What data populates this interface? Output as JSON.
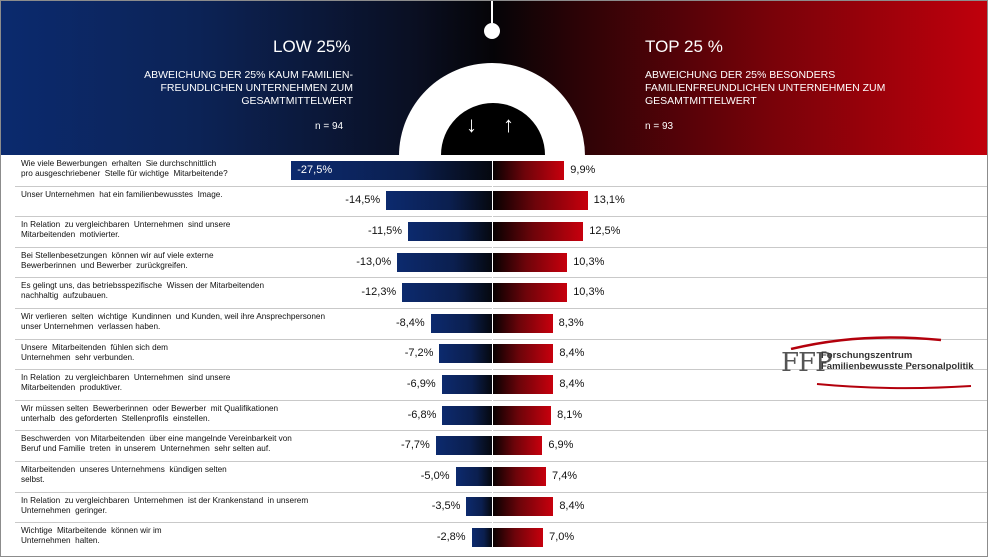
{
  "header": {
    "low_title": "LOW 25%",
    "low_subtitle": "ABWEICHUNG DER 25% KAUM FAMILIEN-\nFREUNDLICHEN UNTERNEHMEN ZUM\nGESAMTMITTELWERT",
    "low_n": "n = 94",
    "top_title": "TOP 25 %",
    "top_subtitle": "ABWEICHUNG DER 25% BESONDERS\nFAMILIENFREUNDLICHEN UNTERNEHMEN ZUM\nGESAMTMITTELWERT",
    "top_n": "n = 93",
    "arrow_down": "↓",
    "arrow_up": "↑"
  },
  "logo": {
    "mark": "FFP",
    "line1": "Forschungszentrum",
    "line2": "Familienbewusste Personalpolitik"
  },
  "colors": {
    "low": "#0c2a6e",
    "top": "#c7000d"
  },
  "chart_data": {
    "type": "bar",
    "orientation": "horizontal-diverging",
    "categories": [
      "Wie viele Bewerbungen  erhalten  Sie durchschnittlich\npro ausgeschriebener  Stelle für wichtige  Mitarbeitende?",
      "Unser Unternehmen  hat ein familienbewusstes  Image.",
      "In Relation  zu vergleichbaren  Unternehmen  sind unsere\nMitarbeitenden  motivierter.",
      "Bei Stellenbesetzungen  können wir auf viele externe\nBewerberinnen  und Bewerber  zurückgreifen.",
      "Es gelingt uns, das betriebsspezifische  Wissen der Mitarbeitenden\nnachhaltig  aufzubauen.",
      "Wir verlieren  selten  wichtige  Kundinnen  und Kunden, weil ihre Ansprechpersonen\nunser Unternehmen  verlassen haben.",
      "Unsere  Mitarbeitenden  fühlen sich dem\nUnternehmen  sehr verbunden.",
      "In Relation  zu vergleichbaren  Unternehmen  sind unsere\nMitarbeitenden  produktiver.",
      "Wir müssen selten  Bewerberinnen  oder Bewerber  mit Qualifikationen\nunterhalb  des geforderten  Stellenprofils  einstellen.",
      "Beschwerden  von Mitarbeitenden  über eine mangelnde Vereinbarkeit von\nBeruf und Familie  treten  in unserem  Unternehmen  sehr selten auf.",
      "Mitarbeitenden  unseres Unternehmens  kündigen selten\nselbst.",
      "In Relation  zu vergleichbaren  Unternehmen  ist der Krankenstand  in unserem\nUnternehmen  geringer.",
      "Wichtige  Mitarbeitende  können wir im\nUnternehmen  halten."
    ],
    "series": [
      {
        "name": "LOW 25%",
        "values": [
          -27.5,
          -14.5,
          -11.5,
          -13.0,
          -12.3,
          -8.4,
          -7.2,
          -6.9,
          -6.8,
          -7.7,
          -5.0,
          -3.5,
          -2.8
        ],
        "labels": [
          "-27,5%",
          "-14,5%",
          "-11,5%",
          "-13,0%",
          "-12,3%",
          "-8,4%",
          "-7,2%",
          "-6,9%",
          "-6,8%",
          "-7,7%",
          "-5,0%",
          "-3,5%",
          "-2,8%"
        ]
      },
      {
        "name": "TOP 25 %",
        "values": [
          9.9,
          13.1,
          12.5,
          10.3,
          10.3,
          8.3,
          8.4,
          8.4,
          8.1,
          6.9,
          7.4,
          8.4,
          7.0
        ],
        "labels": [
          "9,9%",
          "13,1%",
          "12,5%",
          "10,3%",
          "10,3%",
          "8,3%",
          "8,4%",
          "8,4%",
          "8,1%",
          "6,9%",
          "7,4%",
          "8,4%",
          "7,0%"
        ]
      }
    ],
    "unit": "%",
    "grid": false,
    "legend": "header"
  }
}
